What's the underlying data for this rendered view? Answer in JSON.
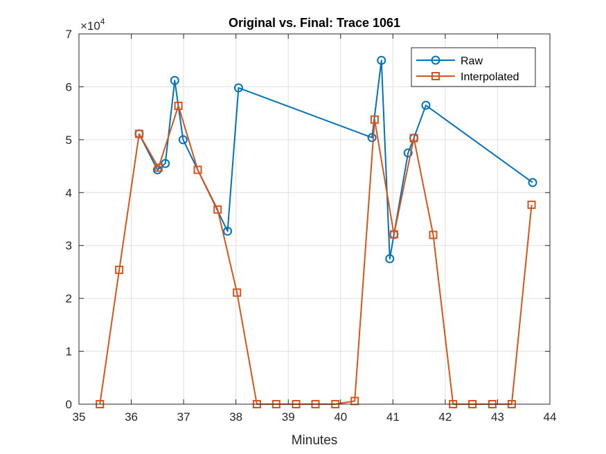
{
  "chart_data": {
    "type": "line",
    "title": "Original vs. Final: Trace 1061",
    "xlabel": "Minutes",
    "ylabel": "",
    "xlim": [
      35,
      44
    ],
    "ylim": [
      0,
      70000
    ],
    "x_ticks": [
      35,
      36,
      37,
      38,
      39,
      40,
      41,
      42,
      43,
      44
    ],
    "x_tick_labels": [
      "35",
      "36",
      "37",
      "38",
      "39",
      "40",
      "41",
      "42",
      "43",
      "44"
    ],
    "y_ticks": [
      0,
      10000,
      20000,
      30000,
      40000,
      50000,
      60000,
      70000
    ],
    "y_tick_labels": [
      "0",
      "1",
      "2",
      "3",
      "4",
      "5",
      "6",
      "7"
    ],
    "y_exponent_base": "×10",
    "y_exponent_power": "4",
    "grid": true,
    "legend_position": "top-right",
    "series": [
      {
        "name": "Raw",
        "color": "#0072BD",
        "marker": "circle",
        "x": [
          36.15,
          36.5,
          36.65,
          36.83,
          36.99,
          37.84,
          38.05,
          40.6,
          40.78,
          40.94,
          41.02,
          41.29,
          41.4,
          41.63,
          43.67
        ],
        "y": [
          51100,
          44300,
          45500,
          61200,
          50000,
          32700,
          59800,
          50400,
          65000,
          27500,
          32100,
          47500,
          50300,
          56500,
          41900
        ]
      },
      {
        "name": "Interpolated",
        "color": "#D95319",
        "marker": "square",
        "x": [
          35.4,
          35.77,
          36.15,
          36.52,
          36.9,
          37.27,
          37.65,
          38.02,
          38.4,
          38.77,
          39.15,
          39.52,
          39.9,
          40.27,
          40.65,
          41.02,
          41.4,
          41.77,
          42.15,
          42.52,
          42.9,
          43.27,
          43.65
        ],
        "y": [
          0,
          25400,
          51100,
          44700,
          56400,
          44300,
          36800,
          21100,
          0,
          0,
          0,
          0,
          0,
          600,
          53800,
          32100,
          50300,
          32000,
          0,
          0,
          0,
          0,
          37700
        ]
      }
    ]
  }
}
